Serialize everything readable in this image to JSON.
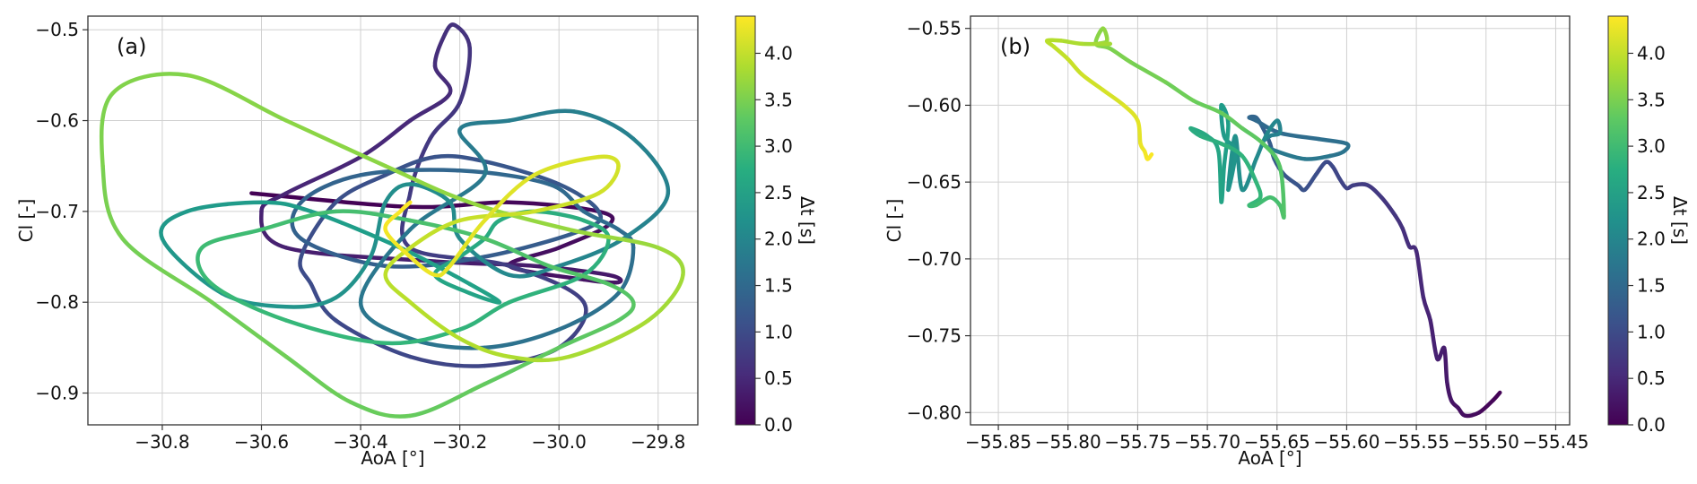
{
  "chart_data": [
    {
      "type": "line",
      "panel_label": "(a)",
      "xlabel": "AoA [°]",
      "ylabel": "Cl [-]",
      "xlim": [
        -30.95,
        -29.72
      ],
      "ylim": [
        -0.935,
        -0.485
      ],
      "xticks": [
        -30.8,
        -30.6,
        -30.4,
        -30.2,
        -30.0,
        -29.8
      ],
      "xtick_labels": [
        "−30.8",
        "−30.6",
        "−30.4",
        "−30.2",
        "−30.0",
        "−29.8"
      ],
      "yticks": [
        -0.5,
        -0.6,
        -0.7,
        -0.8,
        -0.9
      ],
      "ytick_labels": [
        "−0.5",
        "−0.6",
        "−0.7",
        "−0.8",
        "−0.9"
      ],
      "grid": true,
      "colorbar": {
        "label": "Δt [s]",
        "range": [
          0,
          4.4
        ],
        "ticks": [
          0.0,
          0.5,
          1.0,
          1.5,
          2.0,
          2.5,
          3.0,
          3.5,
          4.0
        ],
        "tick_labels": [
          "0.0",
          "0.5",
          "1.0",
          "1.5",
          "2.0",
          "2.5",
          "3.0",
          "3.5",
          "4.0"
        ],
        "colormap": "viridis"
      },
      "series": [
        {
          "t_range": [
            0.0,
            4.4
          ],
          "x": [
            -30.62,
            -30.3,
            -30.1,
            -29.92,
            -29.9,
            -30.0,
            -30.1,
            -29.95,
            -29.88,
            -29.9,
            -30.05,
            -30.25,
            -30.55,
            -30.6,
            -30.55,
            -30.4,
            -30.3,
            -30.22,
            -30.25,
            -30.23,
            -30.21,
            -30.18,
            -30.2,
            -30.26,
            -30.3,
            -30.3,
            -30.1,
            -29.95,
            -30.0,
            -30.15,
            -30.3,
            -30.45,
            -30.5,
            -30.52,
            -30.45,
            -30.35,
            -30.25,
            -30.15,
            -30.0,
            -29.92,
            -29.95,
            -30.15,
            -30.35,
            -30.52,
            -30.52,
            -30.4,
            -30.2,
            -30.02,
            -29.95,
            -29.88,
            -29.85,
            -29.88,
            -30.0,
            -30.15,
            -30.3,
            -30.4,
            -30.3,
            -30.15,
            -30.2,
            -30.1,
            -29.97,
            -29.85,
            -29.78,
            -29.87,
            -30.0,
            -30.1,
            -30.2,
            -30.22,
            -30.3,
            -30.35,
            -30.38,
            -30.45,
            -30.55,
            -30.68,
            -30.8,
            -30.75,
            -30.6,
            -30.5,
            -30.32,
            -30.18,
            -30.12,
            -30.18,
            -30.25,
            -30.2,
            -30.15,
            -30.12,
            -30.05,
            -29.95,
            -29.9,
            -29.95,
            -30.1,
            -30.2,
            -30.35,
            -30.55,
            -30.7,
            -30.72,
            -30.6,
            -30.45,
            -30.3,
            -30.15,
            -30.02,
            -29.9,
            -29.85,
            -29.88,
            -30.0,
            -30.15,
            -30.3,
            -30.42,
            -30.55,
            -30.7,
            -30.88,
            -30.92,
            -30.9,
            -30.75,
            -30.55,
            -30.35,
            -30.18,
            -29.98,
            -29.8,
            -29.75,
            -29.82,
            -29.98,
            -30.1,
            -30.2,
            -30.3,
            -30.35,
            -30.3,
            -30.2,
            -30.05,
            -29.92,
            -29.88,
            -29.92,
            -30.05,
            -30.15,
            -30.22,
            -30.25,
            -30.3,
            -30.35,
            -30.32,
            -30.3
          ],
          "y": [
            -0.68,
            -0.695,
            -0.69,
            -0.7,
            -0.715,
            -0.74,
            -0.76,
            -0.775,
            -0.778,
            -0.77,
            -0.76,
            -0.755,
            -0.74,
            -0.7,
            -0.68,
            -0.64,
            -0.6,
            -0.57,
            -0.54,
            -0.505,
            -0.495,
            -0.52,
            -0.58,
            -0.62,
            -0.68,
            -0.74,
            -0.76,
            -0.8,
            -0.85,
            -0.87,
            -0.86,
            -0.82,
            -0.78,
            -0.75,
            -0.69,
            -0.66,
            -0.64,
            -0.645,
            -0.67,
            -0.7,
            -0.72,
            -0.75,
            -0.76,
            -0.73,
            -0.69,
            -0.66,
            -0.655,
            -0.67,
            -0.7,
            -0.72,
            -0.74,
            -0.79,
            -0.83,
            -0.85,
            -0.84,
            -0.8,
            -0.72,
            -0.66,
            -0.61,
            -0.6,
            -0.59,
            -0.62,
            -0.68,
            -0.73,
            -0.76,
            -0.77,
            -0.73,
            -0.69,
            -0.67,
            -0.69,
            -0.75,
            -0.795,
            -0.805,
            -0.79,
            -0.73,
            -0.7,
            -0.69,
            -0.7,
            -0.74,
            -0.78,
            -0.8,
            -0.79,
            -0.77,
            -0.75,
            -0.73,
            -0.71,
            -0.7,
            -0.71,
            -0.73,
            -0.77,
            -0.8,
            -0.83,
            -0.845,
            -0.82,
            -0.78,
            -0.74,
            -0.72,
            -0.7,
            -0.71,
            -0.73,
            -0.76,
            -0.78,
            -0.8,
            -0.82,
            -0.85,
            -0.89,
            -0.925,
            -0.91,
            -0.86,
            -0.8,
            -0.73,
            -0.65,
            -0.57,
            -0.55,
            -0.6,
            -0.65,
            -0.69,
            -0.72,
            -0.74,
            -0.77,
            -0.82,
            -0.86,
            -0.86,
            -0.84,
            -0.8,
            -0.77,
            -0.74,
            -0.71,
            -0.7,
            -0.68,
            -0.65,
            -0.64,
            -0.66,
            -0.71,
            -0.76,
            -0.77,
            -0.75,
            -0.72,
            -0.7,
            -0.69
          ]
        }
      ]
    },
    {
      "type": "line",
      "panel_label": "(b)",
      "xlabel": "AoA [°]",
      "ylabel": "Cl [-]",
      "xlim": [
        -55.87,
        -55.44
      ],
      "ylim": [
        -0.808,
        -0.542
      ],
      "xticks": [
        -55.85,
        -55.8,
        -55.75,
        -55.7,
        -55.65,
        -55.6,
        -55.55,
        -55.5,
        -55.45
      ],
      "xtick_labels": [
        "−55.85",
        "−55.80",
        "−55.75",
        "−55.70",
        "−55.65",
        "−55.60",
        "−55.55",
        "−55.50",
        "−55.45"
      ],
      "yticks": [
        -0.55,
        -0.6,
        -0.65,
        -0.7,
        -0.75,
        -0.8
      ],
      "ytick_labels": [
        "−0.55",
        "−0.60",
        "−0.65",
        "−0.70",
        "−0.75",
        "−0.80"
      ],
      "grid": true,
      "colorbar": {
        "label": "Δt [s]",
        "range": [
          0,
          4.4
        ],
        "ticks": [
          0.0,
          0.5,
          1.0,
          1.5,
          2.0,
          2.5,
          3.0,
          3.5,
          4.0
        ],
        "tick_labels": [
          "0.0",
          "0.5",
          "1.0",
          "1.5",
          "2.0",
          "2.5",
          "3.0",
          "3.5",
          "4.0"
        ],
        "colormap": "viridis"
      },
      "series": [
        {
          "t_range": [
            0.0,
            4.4
          ],
          "x": [
            -55.49,
            -55.495,
            -55.505,
            -55.515,
            -55.52,
            -55.525,
            -55.528,
            -55.53,
            -55.535,
            -55.54,
            -55.545,
            -55.55,
            -55.555,
            -55.56,
            -55.565,
            -55.575,
            -55.585,
            -55.595,
            -55.6,
            -55.605,
            -55.61,
            -55.615,
            -55.622,
            -55.63,
            -55.635,
            -55.645,
            -55.652,
            -55.655,
            -55.66,
            -55.665,
            -55.67,
            -55.665,
            -55.648,
            -55.62,
            -55.6,
            -55.602,
            -55.612,
            -55.63,
            -55.65,
            -55.66,
            -55.655,
            -55.648,
            -55.65,
            -55.658,
            -55.665,
            -55.675,
            -55.68,
            -55.685,
            -55.68,
            -55.688,
            -55.69,
            -55.685,
            -55.688,
            -55.69,
            -55.692,
            -55.7,
            -55.712,
            -55.705,
            -55.69,
            -55.675,
            -55.665,
            -55.662,
            -55.67,
            -55.665,
            -55.655,
            -55.648,
            -55.645,
            -55.648,
            -55.66,
            -55.675,
            -55.69,
            -55.71,
            -55.73,
            -55.755,
            -55.77,
            -55.78,
            -55.775,
            -55.772,
            -55.778,
            -55.77,
            -55.79,
            -55.805,
            -55.815,
            -55.81,
            -55.8,
            -55.79,
            -55.775,
            -55.76,
            -55.75,
            -55.748,
            -55.745,
            -55.743,
            -55.74
          ],
          "y": [
            -0.787,
            -0.792,
            -0.8,
            -0.802,
            -0.797,
            -0.792,
            -0.78,
            -0.758,
            -0.765,
            -0.74,
            -0.725,
            -0.695,
            -0.692,
            -0.68,
            -0.672,
            -0.66,
            -0.652,
            -0.652,
            -0.654,
            -0.648,
            -0.64,
            -0.637,
            -0.645,
            -0.655,
            -0.652,
            -0.645,
            -0.635,
            -0.625,
            -0.615,
            -0.608,
            -0.608,
            -0.61,
            -0.618,
            -0.622,
            -0.625,
            -0.63,
            -0.633,
            -0.635,
            -0.63,
            -0.625,
            -0.62,
            -0.618,
            -0.61,
            -0.62,
            -0.635,
            -0.655,
            -0.62,
            -0.655,
            -0.63,
            -0.62,
            -0.6,
            -0.612,
            -0.64,
            -0.663,
            -0.63,
            -0.62,
            -0.615,
            -0.62,
            -0.625,
            -0.633,
            -0.65,
            -0.66,
            -0.665,
            -0.665,
            -0.66,
            -0.665,
            -0.672,
            -0.64,
            -0.625,
            -0.615,
            -0.605,
            -0.597,
            -0.585,
            -0.572,
            -0.563,
            -0.56,
            -0.55,
            -0.558,
            -0.56,
            -0.56,
            -0.56,
            -0.558,
            -0.558,
            -0.562,
            -0.57,
            -0.58,
            -0.59,
            -0.6,
            -0.61,
            -0.625,
            -0.63,
            -0.635,
            -0.632
          ]
        }
      ]
    }
  ]
}
